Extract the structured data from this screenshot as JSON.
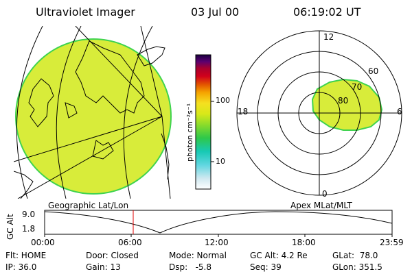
{
  "header": {
    "instrument": "Ultraviolet Imager",
    "date": "03 Jul 00",
    "time": "06:19:02 UT"
  },
  "colorbar": {
    "unit_label": "photon cm⁻²s⁻¹",
    "tick_100": "100",
    "tick_10": "10",
    "stops": [
      "#ffffff",
      "#cfe8f0",
      "#5fd6e0",
      "#17c9b4",
      "#2ec84a",
      "#8cdc2a",
      "#d8e81a",
      "#f5e020",
      "#f5a300",
      "#e25300",
      "#d1001b",
      "#a8002e",
      "#5a0070",
      "#1a0040"
    ]
  },
  "polar": {
    "mlt_labels": {
      "top": "12",
      "right": "6",
      "bottom": "0",
      "left": "18"
    },
    "lat_labels": [
      "60",
      "70",
      "80"
    ],
    "fill_color": "#d8ec3a",
    "edge_color": "#3fd34f"
  },
  "geo": {
    "fill_color": "#d8ec3a",
    "edge_color": "#3fd34f"
  },
  "timeline": {
    "left_title": "Geographic Lat/Lon",
    "right_title": "Apex MLat/MLT",
    "axis_label": "GC Alt",
    "ymax": "9.0",
    "ymin": "1.8",
    "ticks": [
      "00:00",
      "06:00",
      "12:00",
      "18:00",
      "23:59"
    ],
    "marker_color": "#e00000"
  },
  "info": {
    "flt": "Flt: HOME",
    "ip": "IP: 36.0",
    "door": "Door: Closed",
    "gain": "Gain: 13",
    "mode": "Mode: Normal",
    "dsp": "Dsp:   -5.8",
    "gcalt": "GC Alt: 4.2 Re",
    "seq": "Seq: 39",
    "glat": "GLat:  78.0",
    "glon": "GLon: 351.5"
  }
}
